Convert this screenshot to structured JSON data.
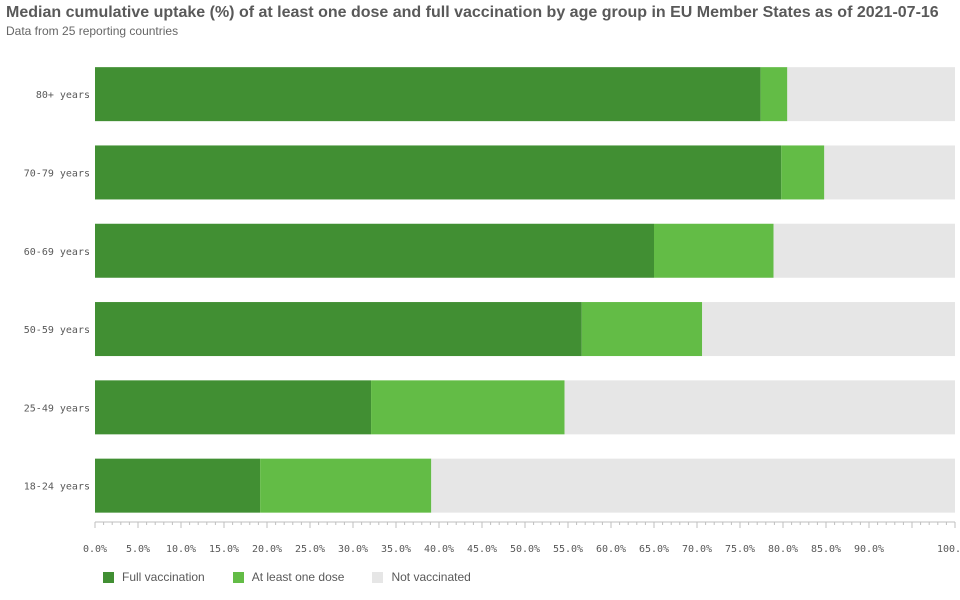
{
  "chart_data": {
    "type": "bar",
    "orientation": "horizontal",
    "stacked": true,
    "title": "Median cumulative uptake (%) of at least one dose and full vaccination by age group in EU Member States as of 2021-07-16",
    "subtitle": "Data from 25 reporting countries",
    "categories": [
      "80+ years",
      "70-79 years",
      "60-69 years",
      "50-59 years",
      "25-49 years",
      "18-24 years"
    ],
    "series": [
      {
        "name": "Full vaccination",
        "color": "#418f33",
        "values": [
          77.4,
          79.8,
          65.0,
          56.6,
          32.1,
          19.2
        ]
      },
      {
        "name": "At least one dose",
        "color": "#63bc46",
        "values": [
          3.1,
          5.0,
          13.9,
          14.0,
          22.5,
          19.9
        ]
      },
      {
        "name": "Not vaccinated",
        "color": "#e6e6e6",
        "values": [
          19.5,
          15.2,
          21.1,
          29.4,
          45.4,
          60.9
        ]
      }
    ],
    "xlim": [
      0,
      100
    ],
    "xticks": [
      "0.0%",
      "5.0%",
      "10.0%",
      "15.0%",
      "20.0%",
      "25.0%",
      "30.0%",
      "35.0%",
      "40.0%",
      "45.0%",
      "50.0%",
      "55.0%",
      "60.0%",
      "65.0%",
      "70.0%",
      "75.0%",
      "80.0%",
      "85.0%",
      "90.0%",
      "100.0%"
    ],
    "xtick_values": [
      0,
      5,
      10,
      15,
      20,
      25,
      30,
      35,
      40,
      45,
      50,
      55,
      60,
      65,
      70,
      75,
      80,
      85,
      90,
      100
    ],
    "legend_position": "bottom-left",
    "grid": false
  }
}
